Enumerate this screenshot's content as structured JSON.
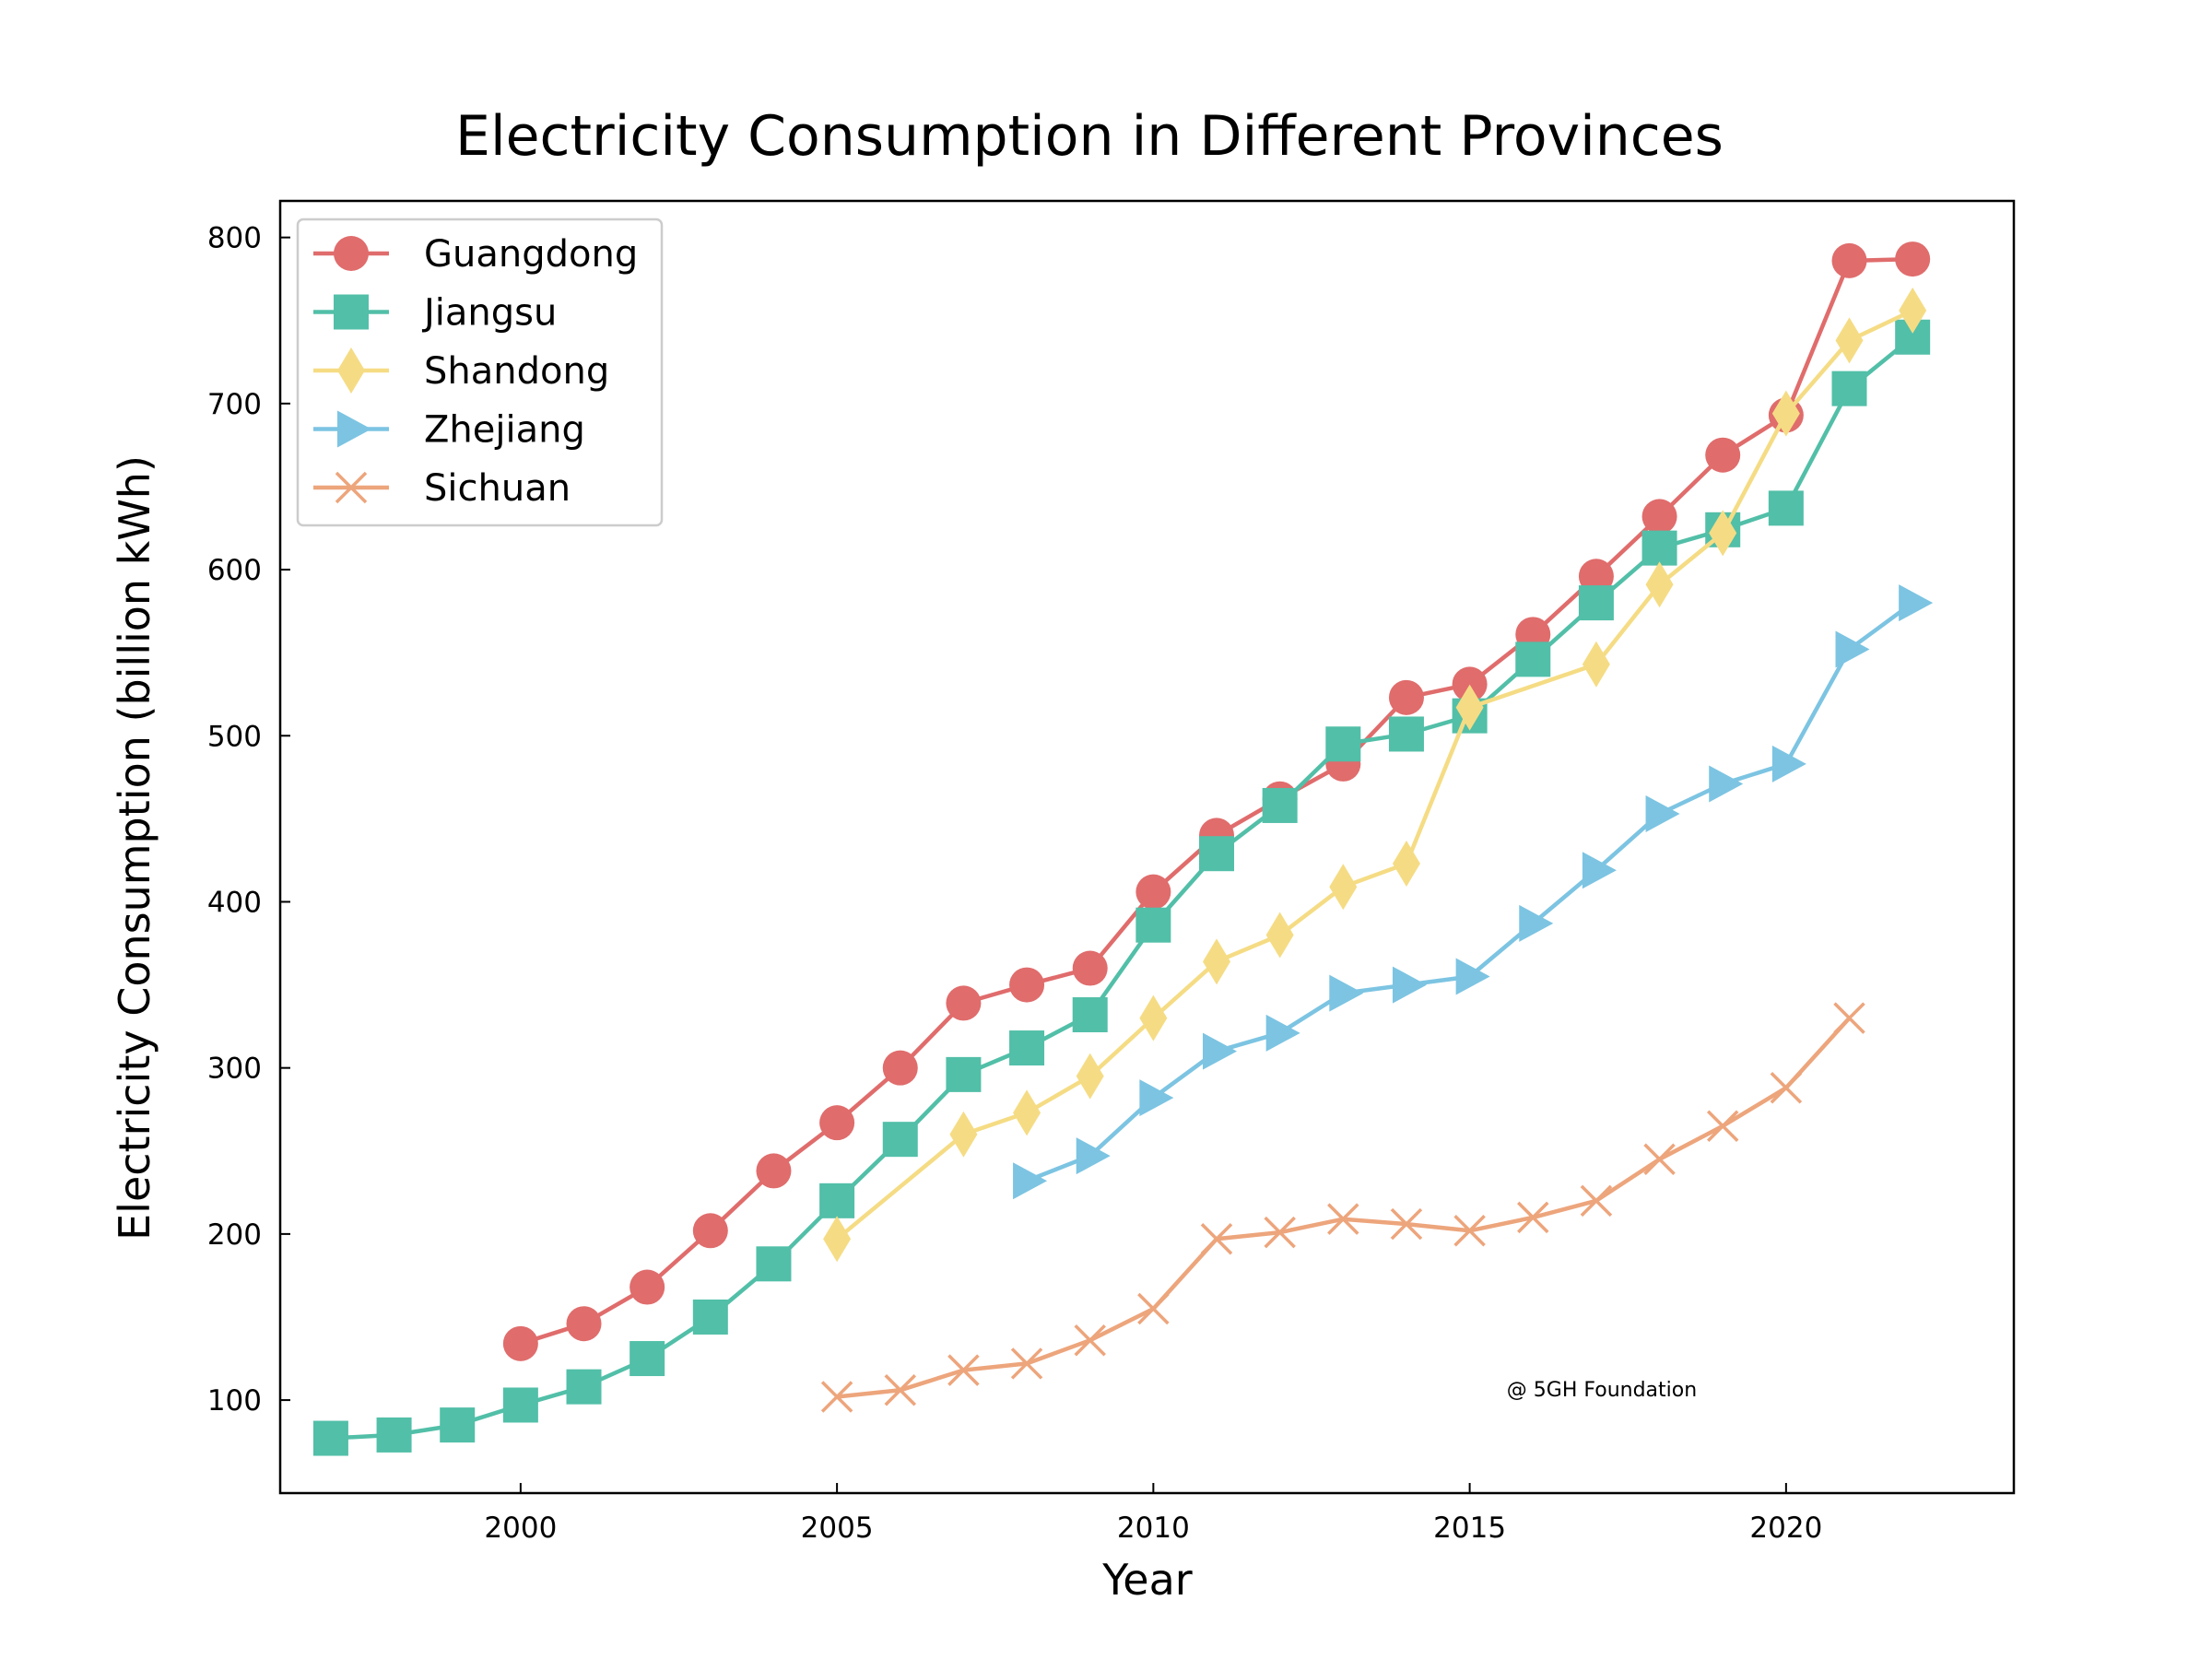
{
  "chart_data": {
    "type": "line",
    "title": "Electricity Consumption in Different Provinces",
    "xlabel": "Year",
    "ylabel": "Electricity Consumption (billion kWh)",
    "xlim": [
      1996.2,
      2023.6
    ],
    "ylim": [
      44,
      822
    ],
    "xticks": [
      2000,
      2005,
      2010,
      2015,
      2020
    ],
    "yticks": [
      100,
      200,
      300,
      400,
      500,
      600,
      700,
      800
    ],
    "grid": false,
    "legend_position": "top-left",
    "watermark": "@ 5GH Foundation",
    "series": [
      {
        "name": "Guangdong",
        "color": "#e06c6c",
        "marker": "circle",
        "x": [
          2000,
          2001,
          2002,
          2003,
          2004,
          2005,
          2006,
          2007,
          2008,
          2009,
          2010,
          2011,
          2012,
          2013,
          2014,
          2015,
          2016,
          2017,
          2018,
          2019,
          2020,
          2021,
          2022
        ],
        "y": [
          134,
          146,
          168,
          202,
          238,
          267,
          300,
          339,
          350,
          360,
          406,
          440,
          462,
          483,
          523,
          531,
          561,
          596,
          632,
          669,
          693,
          786,
          787
        ]
      },
      {
        "name": "Jiangsu",
        "color": "#52bfa8",
        "marker": "square",
        "x": [
          1997,
          1998,
          1999,
          2000,
          2001,
          2002,
          2003,
          2004,
          2005,
          2006,
          2007,
          2008,
          2009,
          2010,
          2011,
          2012,
          2013,
          2014,
          2015,
          2016,
          2017,
          2018,
          2019,
          2020,
          2021,
          2022
        ],
        "y": [
          77,
          79,
          85,
          97,
          108,
          125,
          150,
          182,
          220,
          257,
          296,
          312,
          332,
          386,
          429,
          458,
          495,
          501,
          512,
          546,
          580,
          613,
          624,
          637,
          709,
          740
        ]
      },
      {
        "name": "Shandong",
        "color": "#f5dc84",
        "marker": "thin-diamond",
        "x": [
          2005,
          2007,
          2008,
          2009,
          2010,
          2011,
          2012,
          2013,
          2014,
          2015,
          2017,
          2018,
          2019,
          2020,
          2021,
          2022
        ],
        "y": [
          197,
          260,
          273,
          295,
          330,
          364,
          380,
          409,
          423,
          517,
          543,
          591,
          622,
          694,
          738,
          756
        ]
      },
      {
        "name": "Zhejiang",
        "color": "#7cc4e2",
        "marker": "triangle-right",
        "x": [
          2008,
          2009,
          2010,
          2011,
          2012,
          2013,
          2014,
          2015,
          2016,
          2017,
          2018,
          2019,
          2020,
          2021,
          2022
        ],
        "y": [
          232,
          247,
          282,
          310,
          321,
          345,
          350,
          355,
          387,
          419,
          453,
          471,
          483,
          552,
          580
        ]
      },
      {
        "name": "Sichuan",
        "color": "#eda57c",
        "marker": "x",
        "x": [
          2005,
          2006,
          2007,
          2008,
          2009,
          2010,
          2011,
          2012,
          2013,
          2014,
          2015,
          2016,
          2017,
          2018,
          2019,
          2020,
          2021
        ],
        "y": [
          102,
          106,
          118,
          122,
          136,
          155,
          197,
          201,
          209,
          206,
          202,
          210,
          220,
          245,
          265,
          288,
          330
        ]
      }
    ]
  }
}
